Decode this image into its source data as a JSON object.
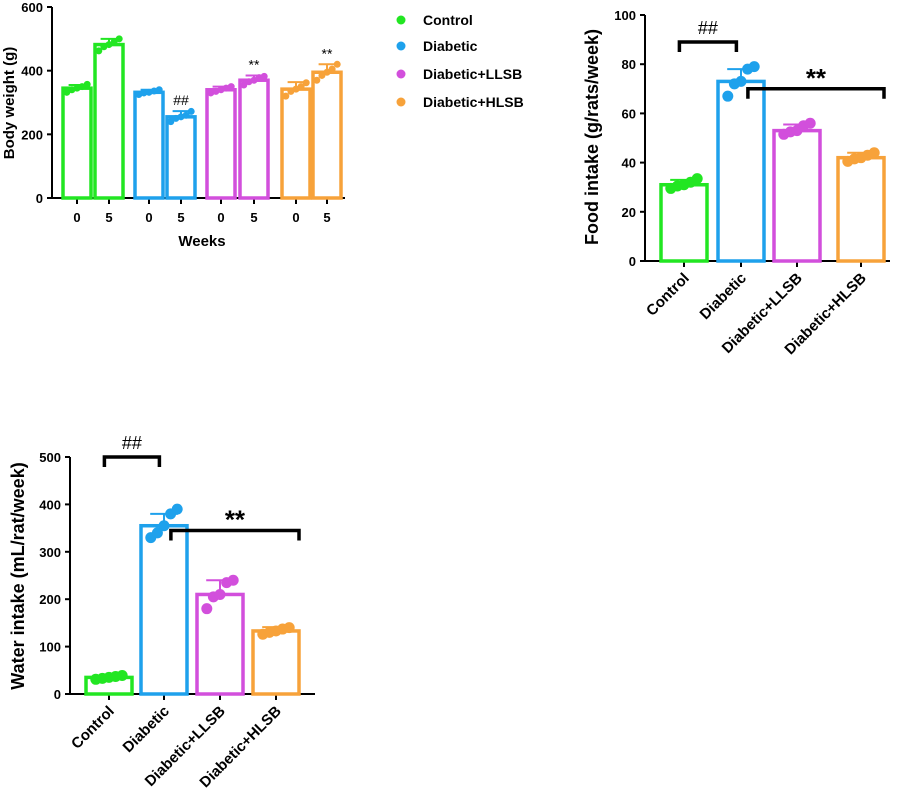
{
  "colors": {
    "Control": "#22e622",
    "Diabetic": "#1ea1ec",
    "Diabetic+LLSB": "#d24fdc",
    "Diabetic+HLSB": "#f7a23a"
  },
  "legend": {
    "entries": [
      "Control",
      "Diabetic",
      "Diabetic+LLSB",
      "Diabetic+HLSB"
    ]
  },
  "chart_data": [
    {
      "id": "body_weight",
      "type": "bar",
      "title": "",
      "xlabel": "Weeks",
      "ylabel": "Body weight (g)",
      "ylim": [
        0,
        600
      ],
      "yticks": [
        "0",
        "200",
        "400",
        "600"
      ],
      "categories": [
        "0",
        "5",
        "0",
        "5",
        "0",
        "5",
        "0",
        "5"
      ],
      "groups": [
        "Control",
        "Control",
        "Diabetic",
        "Diabetic",
        "Diabetic+LLSB",
        "Diabetic+LLSB",
        "Diabetic+HLSB",
        "Diabetic+HLSB"
      ],
      "values": [
        345,
        482,
        332,
        255,
        340,
        370,
        342,
        395
      ],
      "errors": [
        10,
        18,
        8,
        18,
        10,
        15,
        22,
        25
      ],
      "points": [
        [
          332,
          340,
          345,
          350,
          357
        ],
        [
          462,
          475,
          482,
          490,
          500
        ],
        [
          325,
          330,
          332,
          336,
          340
        ],
        [
          240,
          250,
          255,
          260,
          272
        ],
        [
          330,
          335,
          340,
          345,
          350
        ],
        [
          355,
          365,
          370,
          378,
          382
        ],
        [
          320,
          335,
          342,
          350,
          362
        ],
        [
          370,
          385,
          395,
          405,
          420
        ]
      ],
      "annotations": [
        {
          "text": "##",
          "bar": 3
        },
        {
          "text": "**",
          "bar": 5
        },
        {
          "text": "**",
          "bar": 7
        }
      ]
    },
    {
      "id": "food_intake",
      "type": "bar",
      "title": "",
      "xlabel": "",
      "ylabel": "Food intake (g/rats/week)",
      "ylim": [
        0,
        100
      ],
      "yticks": [
        "0",
        "20",
        "40",
        "60",
        "80",
        "100"
      ],
      "categories": [
        "Control",
        "Diabetic",
        "Diabetic+LLSB",
        "Diabetic+HLSB"
      ],
      "values": [
        31,
        73,
        53,
        42
      ],
      "errors": [
        2,
        5,
        2.5,
        2
      ],
      "points": [
        [
          29.5,
          30.5,
          31,
          32,
          33.5
        ],
        [
          67,
          72,
          73,
          78,
          79
        ],
        [
          51.5,
          52.5,
          53,
          55,
          56
        ],
        [
          40.5,
          41.5,
          42,
          43,
          44
        ]
      ],
      "brackets": [
        {
          "text": "##",
          "from": 0,
          "to": 1,
          "y": 89
        },
        {
          "text": "**",
          "from": 1,
          "to": 3,
          "y": 70
        }
      ]
    },
    {
      "id": "water_intake",
      "type": "bar",
      "title": "",
      "xlabel": "",
      "ylabel": "Water intake (mL/rat/week)",
      "ylim": [
        0,
        500
      ],
      "yticks": [
        "0",
        "100",
        "200",
        "300",
        "400",
        "500"
      ],
      "categories": [
        "Control",
        "Diabetic",
        "Diabetic+LLSB",
        "Diabetic+HLSB"
      ],
      "values": [
        35,
        355,
        210,
        133
      ],
      "errors": [
        4,
        25,
        30,
        8
      ],
      "points": [
        [
          31,
          33,
          35,
          37,
          39
        ],
        [
          330,
          340,
          355,
          380,
          390
        ],
        [
          180,
          205,
          210,
          235,
          240
        ],
        [
          126,
          130,
          133,
          137,
          140
        ]
      ],
      "brackets": [
        {
          "text": "##",
          "from": 0,
          "to": 1,
          "y": 500
        },
        {
          "text": "**",
          "from": 1,
          "to": 3,
          "y": 345
        }
      ]
    }
  ]
}
